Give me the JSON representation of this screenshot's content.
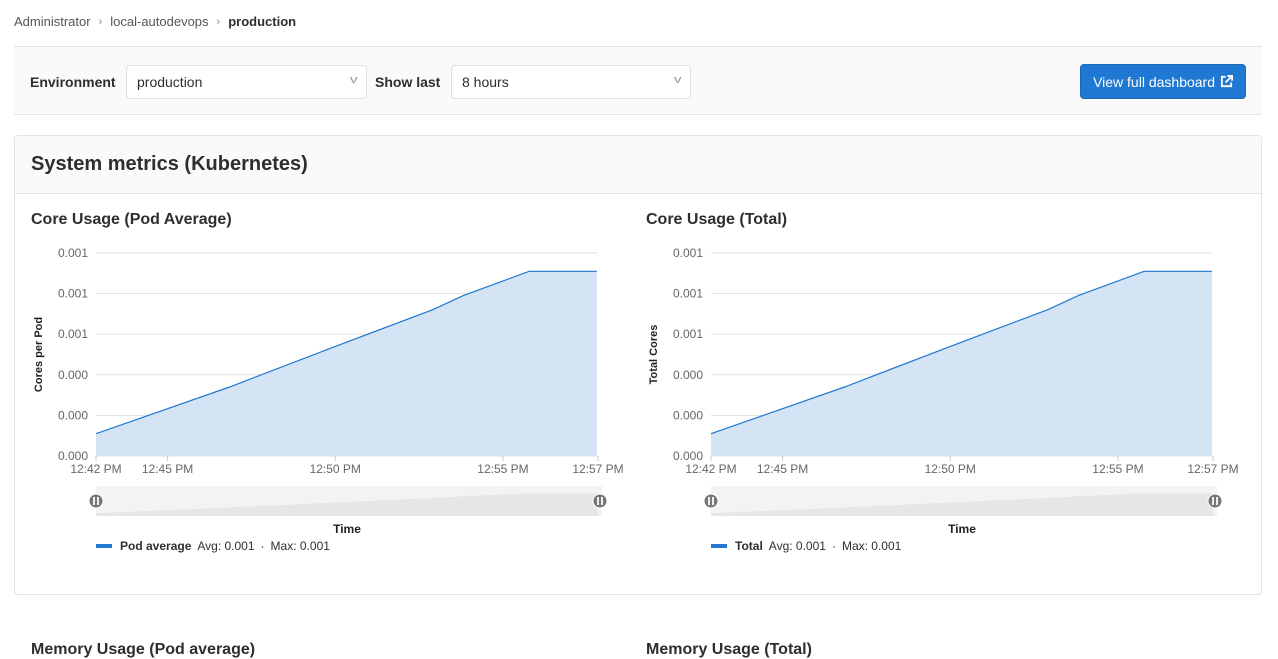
{
  "breadcrumb": [
    "Administrator",
    "local-autodevops",
    "production"
  ],
  "toolbar": {
    "environment_label": "Environment",
    "environment_value": "production",
    "show_last_label": "Show last",
    "show_last_value": "8 hours",
    "dashboard_button": "View full dashboard",
    "dashboard_icon": "external-link-icon"
  },
  "card": {
    "title": "System metrics (Kubernetes)",
    "next_titles": [
      "Memory Usage (Pod average)",
      "Memory Usage (Total)"
    ]
  },
  "colors": {
    "accent": "#1f78d1",
    "area_fill": "#d5e4f4",
    "line": "#1f78d1"
  },
  "chart_data": [
    {
      "type": "area",
      "title": "Core Usage (Pod Average)",
      "xlabel": "Time",
      "ylabel": "Cores per Pod",
      "xlim": [
        "12:42:52",
        "12:57:50"
      ],
      "ylim": [
        0,
        0.001
      ],
      "grid": true,
      "x_ticks": [
        {
          "t": "12:42:52",
          "label": "12:42 PM"
        },
        {
          "t": "12:45:00",
          "label": "12:45 PM"
        },
        {
          "t": "12:50:00",
          "label": "12:50 PM"
        },
        {
          "t": "12:55:00",
          "label": "12:55 PM"
        },
        {
          "t": "12:57:50",
          "label": "12:57 PM"
        }
      ],
      "y_ticks": [
        {
          "v": 0,
          "label": "0.000"
        },
        {
          "v": 0.0002,
          "label": "0.000"
        },
        {
          "v": 0.0004,
          "label": "0.000"
        },
        {
          "v": 0.0006,
          "label": "0.001"
        },
        {
          "v": 0.0008,
          "label": "0.001"
        },
        {
          "v": 0.001,
          "label": "0.001"
        }
      ],
      "series": [
        {
          "name": "Pod average",
          "avg": "Avg: 0.001",
          "max": "Max: 0.001",
          "x": [
            "12:42:52",
            "12:46:51",
            "12:50:00",
            "12:52:54",
            "12:53:49",
            "12:55:47",
            "12:57:48"
          ],
          "y": [
            0.00011,
            0.00034,
            0.00054,
            0.00072,
            0.00079,
            0.00091,
            0.00091
          ]
        }
      ]
    },
    {
      "type": "area",
      "title": "Core Usage (Total)",
      "xlabel": "Time",
      "ylabel": "Total Cores",
      "xlim": [
        "12:42:52",
        "12:57:50"
      ],
      "ylim": [
        0,
        0.001
      ],
      "grid": true,
      "x_ticks": [
        {
          "t": "12:42:52",
          "label": "12:42 PM"
        },
        {
          "t": "12:45:00",
          "label": "12:45 PM"
        },
        {
          "t": "12:50:00",
          "label": "12:50 PM"
        },
        {
          "t": "12:55:00",
          "label": "12:55 PM"
        },
        {
          "t": "12:57:50",
          "label": "12:57 PM"
        }
      ],
      "y_ticks": [
        {
          "v": 0,
          "label": "0.000"
        },
        {
          "v": 0.0002,
          "label": "0.000"
        },
        {
          "v": 0.0004,
          "label": "0.000"
        },
        {
          "v": 0.0006,
          "label": "0.001"
        },
        {
          "v": 0.0008,
          "label": "0.001"
        },
        {
          "v": 0.001,
          "label": "0.001"
        }
      ],
      "series": [
        {
          "name": "Total",
          "avg": "Avg: 0.001",
          "max": "Max: 0.001",
          "x": [
            "12:42:52",
            "12:46:51",
            "12:50:00",
            "12:52:54",
            "12:53:49",
            "12:55:47",
            "12:57:48"
          ],
          "y": [
            0.00011,
            0.00034,
            0.00054,
            0.00072,
            0.00079,
            0.00091,
            0.00091
          ]
        }
      ]
    }
  ]
}
